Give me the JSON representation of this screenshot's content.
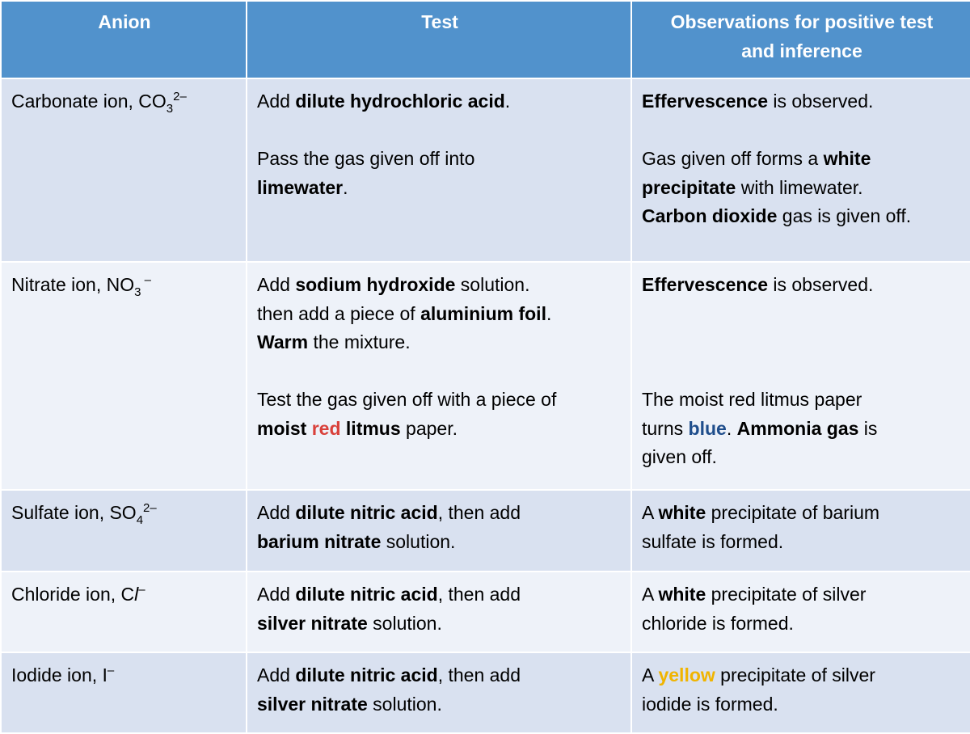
{
  "colors": {
    "header": "#5192CC",
    "row_odd": "#D9E1F0",
    "row_even": "#EEF2F9",
    "red": "#D9413B",
    "blue": "#1F4E8C",
    "yellow": "#F0B400"
  },
  "headers": [
    "Anion",
    "Test",
    "Observations for positive test\nand inference"
  ],
  "rows": [
    {
      "name": "carbonate",
      "anion": [
        [
          {
            "t": "Carbonate ion, CO"
          },
          {
            "t": "3",
            "s": "sub"
          },
          {
            "t": "2–",
            "s": "sup"
          }
        ]
      ],
      "test": [
        [
          {
            "t": "Add "
          },
          {
            "t": "dilute hydrochloric acid",
            "b": true
          },
          {
            "t": "."
          }
        ],
        [],
        [
          {
            "t": "Pass the gas given off into"
          }
        ],
        [
          {
            "t": "limewater",
            "b": true
          },
          {
            "t": "."
          }
        ]
      ],
      "obs": [
        [
          {
            "t": "Effervescence",
            "b": true
          },
          {
            "t": " is observed."
          }
        ],
        [],
        [
          {
            "t": "Gas given off forms a "
          },
          {
            "t": "white",
            "b": true
          }
        ],
        [
          {
            "t": "precipitate",
            "b": true
          },
          {
            "t": " with limewater."
          }
        ],
        [
          {
            "t": "Carbon dioxide",
            "b": true
          },
          {
            "t": " gas is given off."
          }
        ]
      ]
    },
    {
      "name": "nitrate",
      "anion": [
        [
          {
            "t": "Nitrate ion, NO"
          },
          {
            "t": "3",
            "s": "sub"
          },
          {
            "t": " –",
            "s": "sup"
          }
        ]
      ],
      "test": [
        [
          {
            "t": "Add "
          },
          {
            "t": "sodium hydroxide",
            "b": true
          },
          {
            "t": " solution."
          }
        ],
        [
          {
            "t": "then add a piece of "
          },
          {
            "t": "aluminium foil",
            "b": true
          },
          {
            "t": "."
          }
        ],
        [
          {
            "t": "Warm",
            "b": true
          },
          {
            "t": " the mixture."
          }
        ],
        [],
        [
          {
            "t": "Test the gas given off with a piece of"
          }
        ],
        [
          {
            "t": "moist ",
            "b": true
          },
          {
            "t": "red",
            "b": true,
            "c": "red"
          },
          {
            "t": " litmus",
            "b": true
          },
          {
            "t": " paper."
          }
        ]
      ],
      "obs": [
        [
          {
            "t": "Effervescence",
            "b": true
          },
          {
            "t": " is observed."
          }
        ],
        [],
        [],
        [],
        [
          {
            "t": "The moist red litmus paper"
          }
        ],
        [
          {
            "t": "turns "
          },
          {
            "t": "blue",
            "b": true,
            "c": "blue"
          },
          {
            "t": ". "
          },
          {
            "t": "Ammonia gas",
            "b": true
          },
          {
            "t": " is"
          }
        ],
        [
          {
            "t": "given off."
          }
        ]
      ]
    },
    {
      "name": "sulfate",
      "anion": [
        [
          {
            "t": "Sulfate ion, SO"
          },
          {
            "t": "4",
            "s": "sub"
          },
          {
            "t": "2–",
            "s": "sup"
          }
        ]
      ],
      "test": [
        [
          {
            "t": "Add "
          },
          {
            "t": "dilute nitric acid",
            "b": true
          },
          {
            "t": ", then add"
          }
        ],
        [
          {
            "t": "barium nitrate",
            "b": true
          },
          {
            "t": " solution."
          }
        ]
      ],
      "obs": [
        [
          {
            "t": "A "
          },
          {
            "t": "white",
            "b": true
          },
          {
            "t": " precipitate of barium"
          }
        ],
        [
          {
            "t": "sulfate is formed."
          }
        ]
      ]
    },
    {
      "name": "chloride",
      "anion": [
        [
          {
            "t": "Chloride ion, C"
          },
          {
            "t": "l",
            "i": true
          },
          {
            "t": "–",
            "s": "sup"
          }
        ]
      ],
      "test": [
        [
          {
            "t": "Add "
          },
          {
            "t": "dilute nitric acid",
            "b": true
          },
          {
            "t": ", then add"
          }
        ],
        [
          {
            "t": "silver nitrate",
            "b": true
          },
          {
            "t": " solution."
          }
        ]
      ],
      "obs": [
        [
          {
            "t": "A "
          },
          {
            "t": "white",
            "b": true
          },
          {
            "t": " precipitate of silver"
          }
        ],
        [
          {
            "t": "chloride is formed."
          }
        ]
      ]
    },
    {
      "name": "iodide",
      "anion": [
        [
          {
            "t": "Iodide ion, I"
          },
          {
            "t": "–",
            "s": "sup"
          }
        ]
      ],
      "test": [
        [
          {
            "t": "Add "
          },
          {
            "t": "dilute nitric acid",
            "b": true
          },
          {
            "t": ", then add"
          }
        ],
        [
          {
            "t": "silver nitrate",
            "b": true
          },
          {
            "t": " solution."
          }
        ]
      ],
      "obs": [
        [
          {
            "t": "A "
          },
          {
            "t": "yellow",
            "b": true,
            "c": "yellow"
          },
          {
            "t": " precipitate of silver"
          }
        ],
        [
          {
            "t": "iodide is formed."
          }
        ]
      ]
    }
  ]
}
